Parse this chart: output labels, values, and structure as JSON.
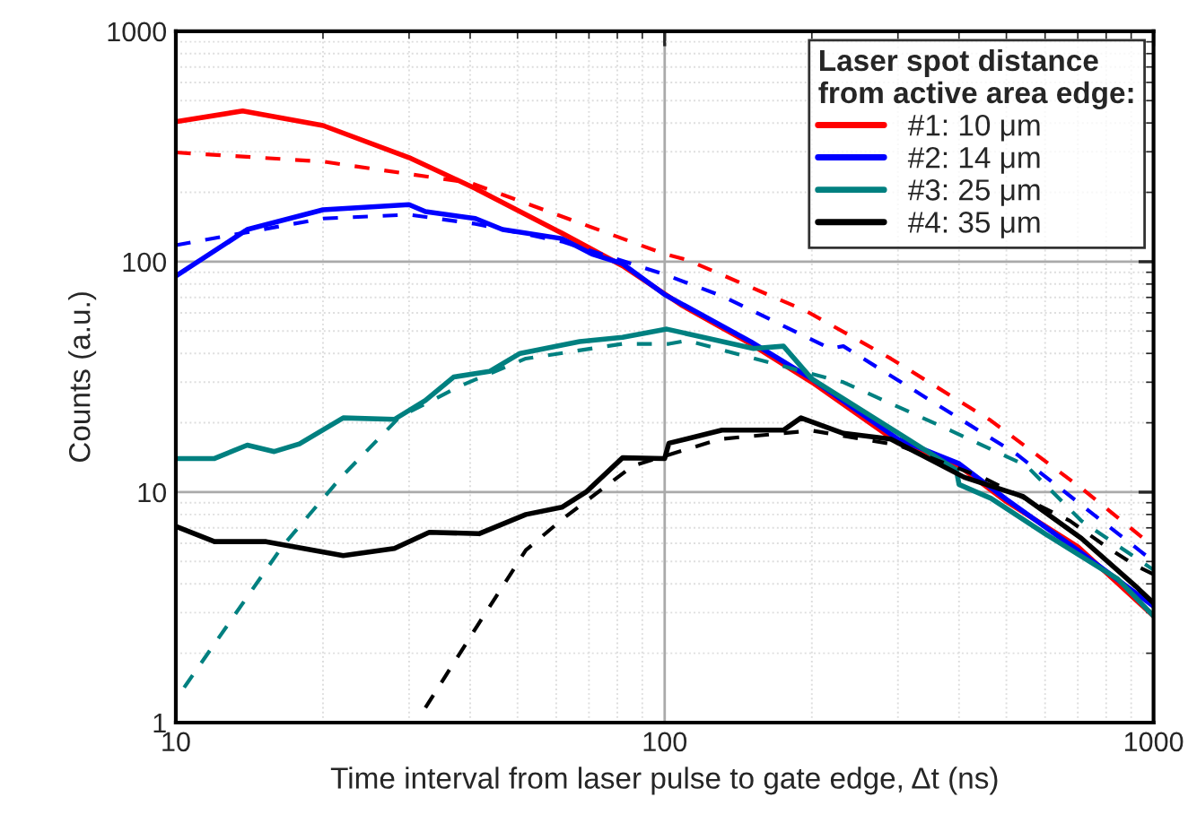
{
  "chart_data": {
    "type": "line",
    "xlabel": "Time interval from laser pulse to gate edge, Δt (ns)",
    "ylabel": "Counts (a.u.)",
    "legend_title": "Laser spot distance\nfrom active area edge:",
    "legend": "top right",
    "log": "xy",
    "grid": true,
    "xlim": [
      10,
      1000
    ],
    "ylim": [
      1,
      1000
    ],
    "xticks": [
      10,
      100,
      1000
    ],
    "yticks": [
      1,
      10,
      100,
      1000
    ],
    "series": [
      {
        "name": "#1: 10 μm",
        "color": "#ff0000",
        "line_style": "solid",
        "x": [
          10,
          13.7,
          20,
          30,
          41,
          61.6,
          82,
          108,
          150,
          200,
          300,
          400,
          500,
          700,
          1000
        ],
        "values": [
          405,
          451,
          390,
          283,
          208,
          133,
          96,
          65,
          44,
          30,
          16.4,
          13,
          9.1,
          5.8,
          2.9
        ]
      },
      {
        "name": "#2: 14 μm",
        "color": "#0000ff",
        "line_style": "solid",
        "x": [
          10,
          14,
          20,
          30,
          32.4,
          41,
          46.6,
          61.6,
          71,
          82,
          100,
          150,
          200,
          300,
          400,
          500,
          700,
          1000
        ],
        "values": [
          86.6,
          138,
          168,
          177,
          165,
          154,
          138,
          126,
          108,
          98,
          72,
          45,
          31,
          17,
          13.3,
          9.3,
          5.6,
          3.2
        ]
      },
      {
        "name": "#3: 25 μm",
        "color": "#008080",
        "line_style": "solid",
        "x": [
          10,
          12,
          14,
          15.9,
          17.9,
          22,
          28,
          32.4,
          37,
          43.8,
          50.6,
          67,
          82,
          101,
          152,
          175,
          200,
          306,
          395,
          400,
          465,
          600,
          845,
          1000
        ],
        "values": [
          14,
          14,
          16,
          15,
          16.2,
          21,
          20.7,
          25,
          31.6,
          33.4,
          40,
          45,
          47,
          51,
          42,
          43,
          31,
          17.6,
          12.5,
          10.8,
          9.4,
          6.6,
          4.2,
          2.9
        ]
      },
      {
        "name": "#4: 35 μm",
        "color": "#000000",
        "line_style": "solid",
        "x": [
          10,
          12,
          15.3,
          22,
          28,
          33,
          41.7,
          52,
          61.6,
          69,
          82,
          100,
          102,
          131,
          175,
          190,
          232,
          290,
          325,
          410,
          540,
          712,
          920,
          1000
        ],
        "values": [
          7.1,
          6.1,
          6.1,
          5.3,
          5.7,
          6.7,
          6.6,
          8,
          8.6,
          10,
          14.1,
          14,
          16.3,
          18.6,
          18.6,
          21,
          18,
          17,
          15,
          11.6,
          9.6,
          6.3,
          3.9,
          3.3
        ]
      },
      {
        "color": "#ff0000",
        "line_style": "dashed",
        "x": [
          10,
          20,
          40,
          100,
          111,
          195,
          252,
          290,
          464,
          712,
          1000
        ],
        "values": [
          298,
          272,
          220,
          108,
          102,
          61,
          45,
          38,
          20.5,
          10.4,
          5.8
        ]
      },
      {
        "color": "#0000ff",
        "line_style": "dashed",
        "x": [
          10,
          20,
          30,
          41,
          62,
          100,
          131,
          218,
          232,
          525,
          712,
          1000
        ],
        "values": [
          118,
          154,
          160,
          146,
          122,
          88,
          71,
          42,
          43,
          14.6,
          8.8,
          5
        ]
      },
      {
        "color": "#008080",
        "line_style": "dashed",
        "x": [
          10.4,
          16.5,
          21.7,
          28.7,
          38.3,
          52,
          82,
          102,
          111,
          232,
          385,
          550,
          712,
          1000
        ],
        "values": [
          1.42,
          5.8,
          11.5,
          21.2,
          29,
          38,
          44,
          44,
          45.5,
          30,
          18.5,
          13,
          7.5,
          4.6
        ]
      },
      {
        "color": "#000000",
        "line_style": "dashed",
        "x": [
          32.4,
          41.7,
          52,
          61.6,
          86,
          130,
          200,
          300,
          450,
          675,
          800,
          920,
          1000
        ],
        "values": [
          1.16,
          2.7,
          5.6,
          7.6,
          13,
          17,
          18.5,
          16,
          11.5,
          7.5,
          5.8,
          4.8,
          4.4
        ]
      }
    ]
  }
}
